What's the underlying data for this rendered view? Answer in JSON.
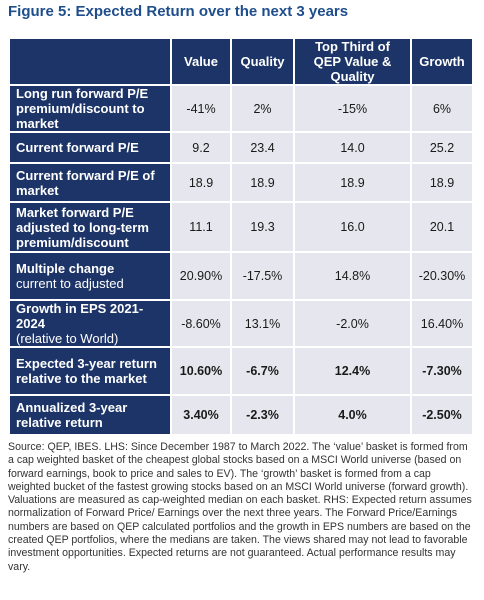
{
  "title": "Figure 5: Expected Return over the next 3 years",
  "table": {
    "header": [
      "Value",
      "Quality",
      "Top Third of QEP Value & Quality",
      "Growth"
    ],
    "rows": [
      {
        "label": "Long run forward P/E premium/discount to market",
        "values": [
          "-41%",
          "2%",
          "-15%",
          "6%"
        ]
      },
      {
        "label": "Current forward P/E",
        "values": [
          "9.2",
          "23.4",
          "14.0",
          "25.2"
        ]
      },
      {
        "label": "Current forward P/E of market",
        "values": [
          "18.9",
          "18.9",
          "18.9",
          "18.9"
        ]
      },
      {
        "label": "Market forward P/E adjusted to long-term premium/discount",
        "values": [
          "11.1",
          "19.3",
          "16.0",
          "20.1"
        ]
      },
      {
        "label": "Multiple change",
        "sublabel": "current to adjusted",
        "values": [
          "20.90%",
          "-17.5%",
          "14.8%",
          "-20.30%"
        ]
      },
      {
        "label": "Growth in EPS 2021-2024",
        "sublabel": "(relative to World)",
        "values": [
          "-8.60%",
          "13.1%",
          "-2.0%",
          "16.40%"
        ]
      },
      {
        "label": "Expected 3-year return relative to the market",
        "values": [
          "10.60%",
          "-6.7%",
          "12.4%",
          "-7.30%"
        ],
        "bold": true
      },
      {
        "label": "Annualized 3-year relative return",
        "values": [
          "3.40%",
          "-2.3%",
          "4.0%",
          "-2.50%"
        ],
        "bold": true
      }
    ]
  },
  "source": "Source: QEP, IBES. LHS: Since December 1987 to March 2022. The ‘value’ basket is formed from a cap weighted basket of the cheapest global stocks based on a MSCI World universe (based on forward earnings, book to price and sales to EV). The ‘growth’ basket is formed from a cap weighted bucket of the fastest growing stocks based on an MSCI World universe (forward growth). Valuations are measured as cap-weighted median on each basket. RHS: Expected return assumes normalization of Forward Price/ Earnings over the next three years. The Forward Price/Earnings numbers are based on QEP calculated portfolios and the growth in EPS numbers are based on the created QEP portfolios, where the medians are taken. The views shared may not lead to favorable investment opportunities. Expected returns are not guaranteed. Actual performance results may vary."
}
